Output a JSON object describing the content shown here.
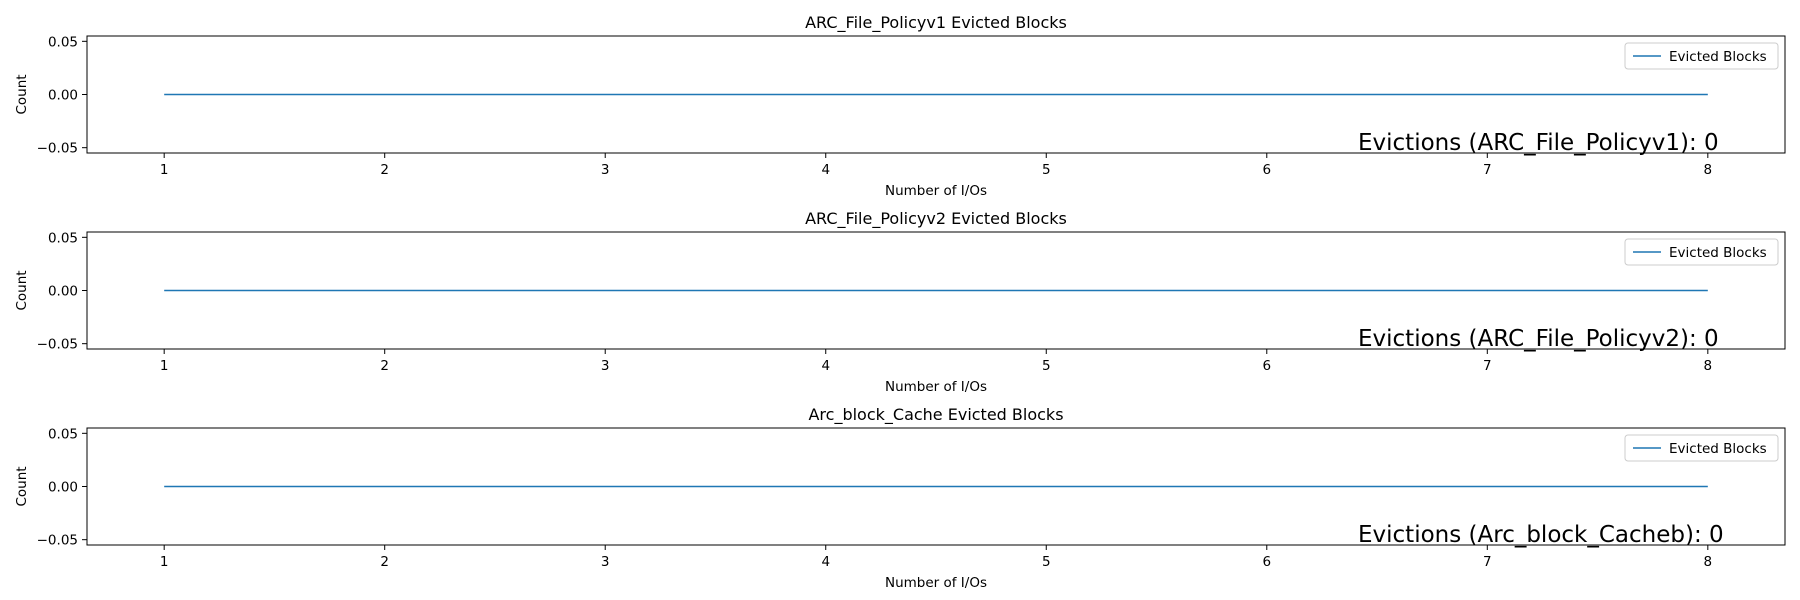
{
  "chart_data": [
    {
      "type": "line",
      "title": "ARC_File_Policyv1 Evicted Blocks",
      "xlabel": "Number of I/Os",
      "ylabel": "Count",
      "x": [
        1,
        2,
        3,
        4,
        5,
        6,
        7,
        8
      ],
      "xticks": [
        "1",
        "2",
        "3",
        "4",
        "5",
        "6",
        "7",
        "8"
      ],
      "yticks": [
        -0.05,
        0.0,
        0.05
      ],
      "ytick_labels": [
        "−0.05",
        "0.00",
        "0.05"
      ],
      "xlim": [
        0.65,
        8.35
      ],
      "ylim": [
        -0.055,
        0.055
      ],
      "series": [
        {
          "name": "Evicted Blocks",
          "values": [
            0,
            0,
            0,
            0,
            0,
            0,
            0,
            0
          ],
          "color": "#1f77b4"
        }
      ],
      "legend": "top-right",
      "annotation": "Evictions (ARC_File_Policyv1): 0"
    },
    {
      "type": "line",
      "title": "ARC_File_Policyv2 Evicted Blocks",
      "xlabel": "Number of I/Os",
      "ylabel": "Count",
      "x": [
        1,
        2,
        3,
        4,
        5,
        6,
        7,
        8
      ],
      "xticks": [
        "1",
        "2",
        "3",
        "4",
        "5",
        "6",
        "7",
        "8"
      ],
      "yticks": [
        -0.05,
        0.0,
        0.05
      ],
      "ytick_labels": [
        "−0.05",
        "0.00",
        "0.05"
      ],
      "xlim": [
        0.65,
        8.35
      ],
      "ylim": [
        -0.055,
        0.055
      ],
      "series": [
        {
          "name": "Evicted Blocks",
          "values": [
            0,
            0,
            0,
            0,
            0,
            0,
            0,
            0
          ],
          "color": "#1f77b4"
        }
      ],
      "legend": "top-right",
      "annotation": "Evictions (ARC_File_Policyv2): 0"
    },
    {
      "type": "line",
      "title": "Arc_block_Cache Evicted Blocks",
      "xlabel": "Number of I/Os",
      "ylabel": "Count",
      "x": [
        1,
        2,
        3,
        4,
        5,
        6,
        7,
        8
      ],
      "xticks": [
        "1",
        "2",
        "3",
        "4",
        "5",
        "6",
        "7",
        "8"
      ],
      "yticks": [
        -0.05,
        0.0,
        0.05
      ],
      "ytick_labels": [
        "−0.05",
        "0.00",
        "0.05"
      ],
      "xlim": [
        0.65,
        8.35
      ],
      "ylim": [
        -0.055,
        0.055
      ],
      "series": [
        {
          "name": "Evicted Blocks",
          "values": [
            0,
            0,
            0,
            0,
            0,
            0,
            0,
            0
          ],
          "color": "#1f77b4"
        }
      ],
      "legend": "top-right",
      "annotation": "Evictions (Arc_block_Cacheb): 0"
    }
  ]
}
